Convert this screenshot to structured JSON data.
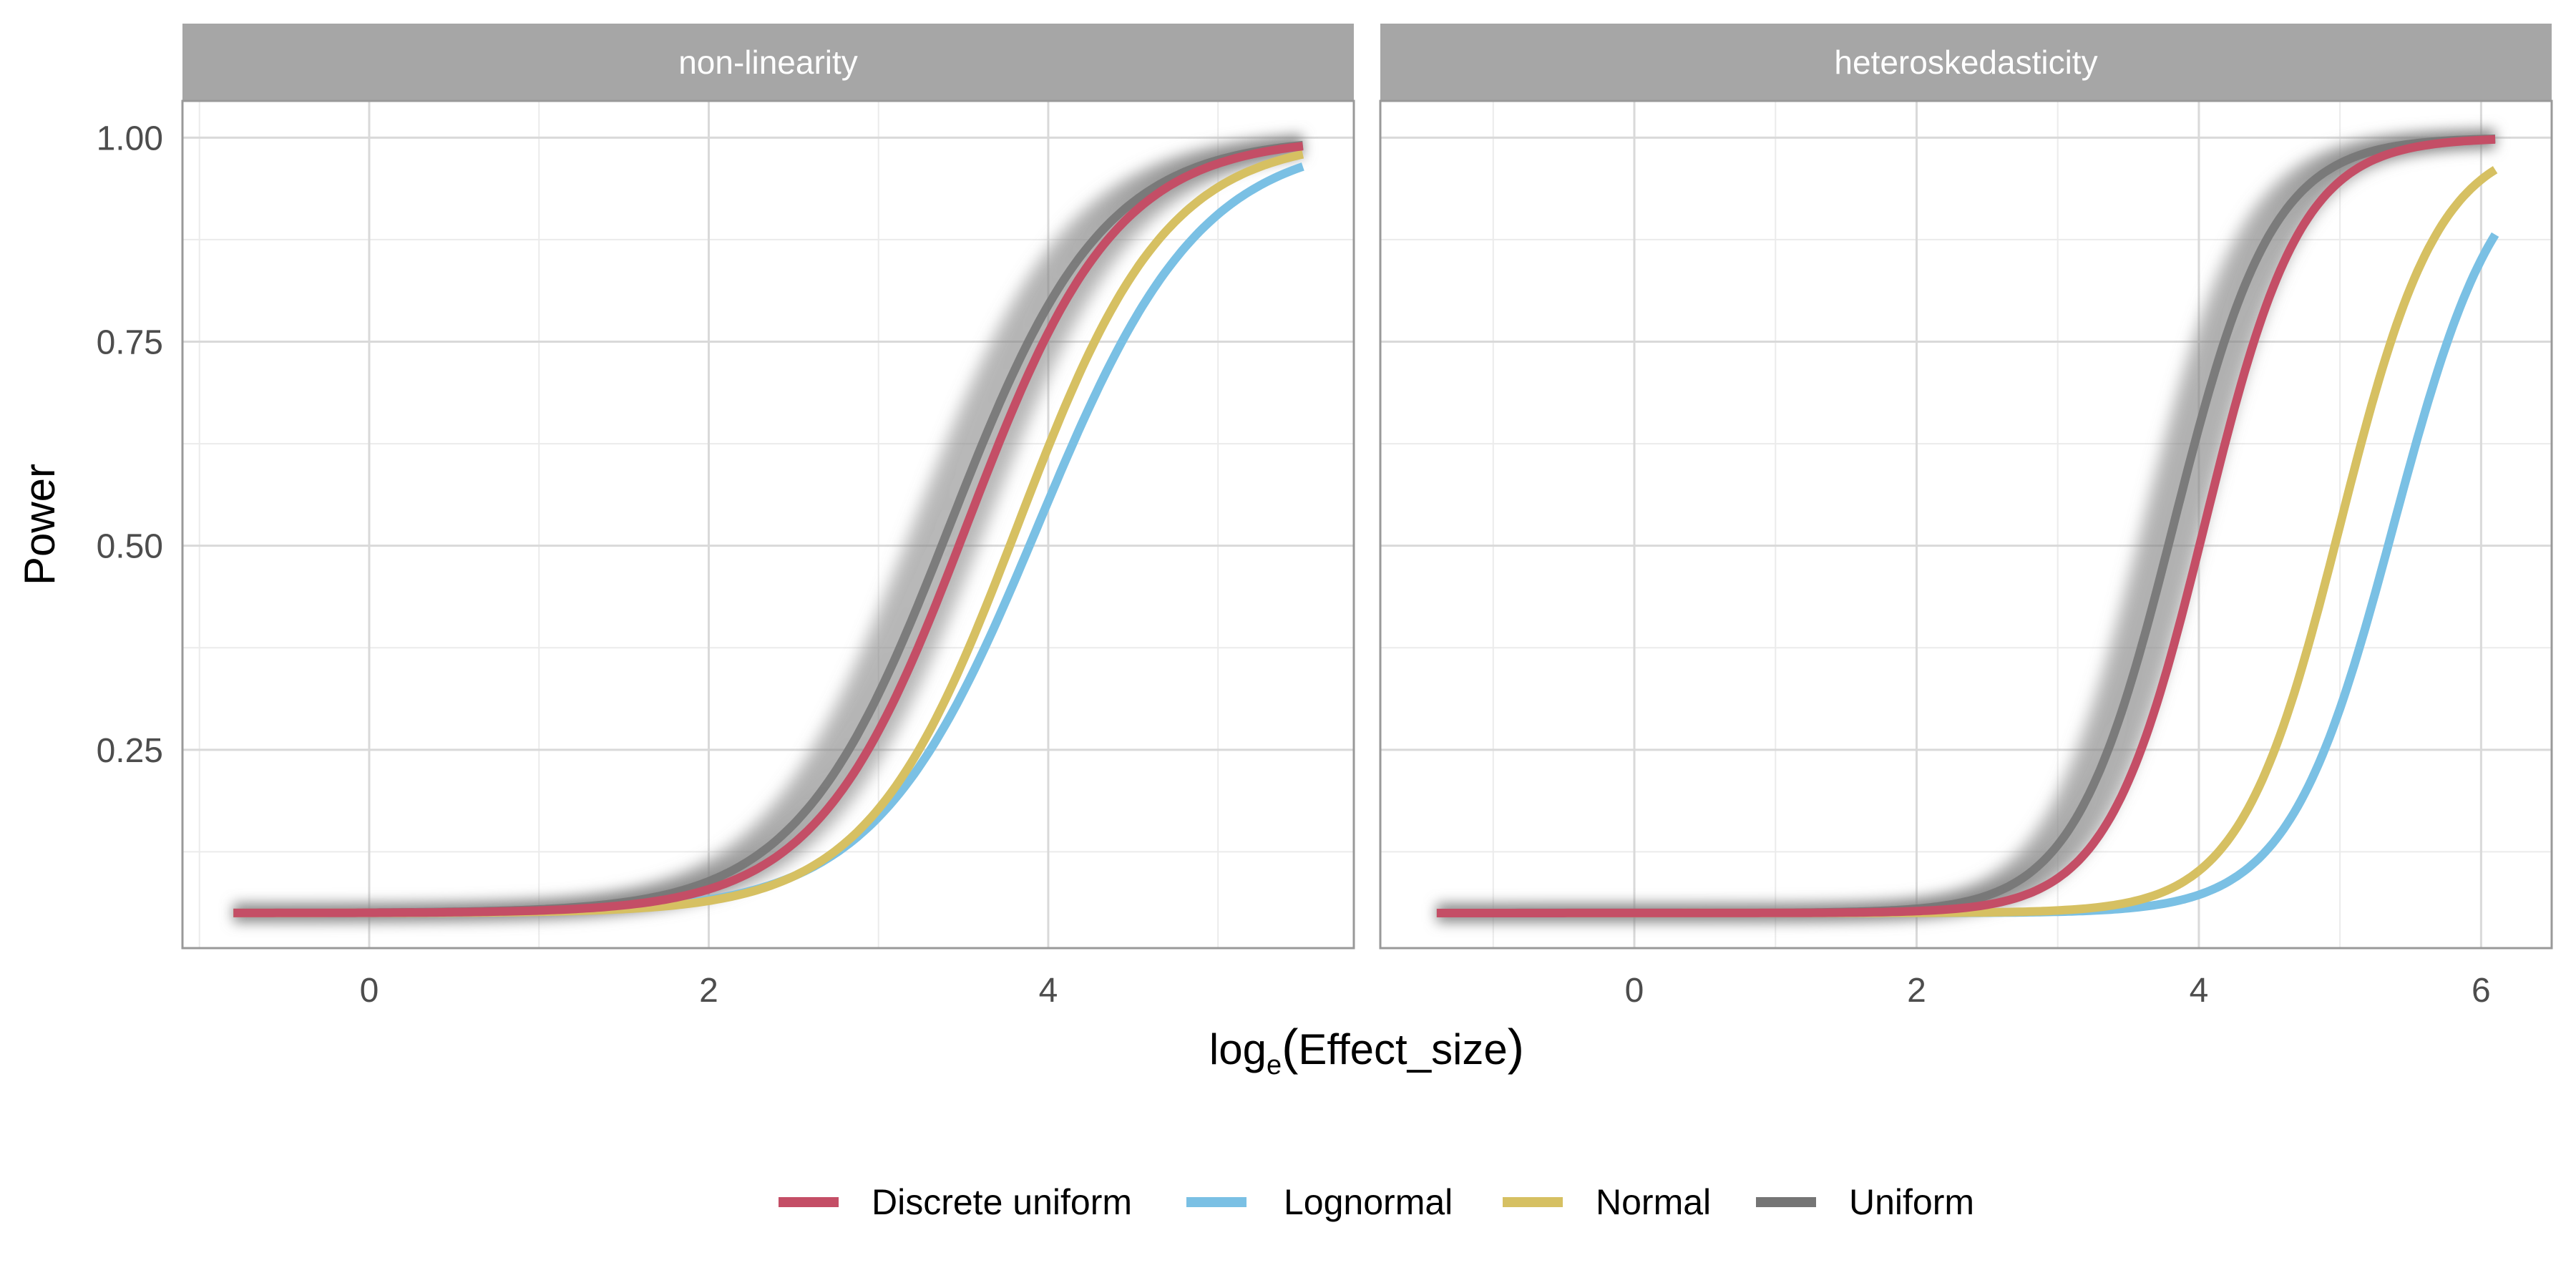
{
  "chart_data": {
    "type": "line",
    "ylabel": "Power",
    "xlabel": {
      "prefix": "log",
      "subscript": "e",
      "inner": "Effect_size"
    },
    "yticks": [
      0.25,
      0.5,
      0.75,
      1.0
    ],
    "ytick_labels": [
      "0.25",
      "0.50",
      "0.75",
      "1.00"
    ],
    "ylim": [
      0.007,
      1.045
    ],
    "grid": true,
    "legend_position": "bottom",
    "legend": [
      {
        "name": "Discrete uniform",
        "color": "#c44e66"
      },
      {
        "name": "Lognormal",
        "color": "#7ac0e4"
      },
      {
        "name": "Normal",
        "color": "#d6c062"
      },
      {
        "name": "Uniform",
        "color": "#757575"
      }
    ],
    "panels": [
      {
        "strip": "non-linearity",
        "xlim": [
          -1.1,
          5.8
        ],
        "xticks": [
          0,
          2,
          4
        ],
        "xtick_labels": [
          "0",
          "2",
          "4"
        ],
        "series": [
          {
            "name": "Uniform",
            "color": "#757575",
            "band": true,
            "x0": 3.42,
            "s": 0.45,
            "xmin": -0.8,
            "xmax": 5.5
          },
          {
            "name": "Lognormal",
            "color": "#7ac0e4",
            "x0": 3.94,
            "s": 0.48,
            "xmin": -0.8,
            "xmax": 5.5
          },
          {
            "name": "Normal",
            "color": "#d6c062",
            "x0": 3.82,
            "s": 0.44,
            "xmin": -0.8,
            "xmax": 5.5
          },
          {
            "name": "Discrete uniform",
            "color": "#c44e66",
            "x0": 3.52,
            "s": 0.44,
            "xmin": -0.8,
            "xmax": 5.5
          }
        ]
      },
      {
        "strip": "heteroskedasticity",
        "xlim": [
          -1.8,
          6.5
        ],
        "xticks": [
          0,
          2,
          4,
          6
        ],
        "xtick_labels": [
          "0",
          "2",
          "4",
          "6"
        ],
        "series": [
          {
            "name": "Uniform",
            "color": "#757575",
            "band": true,
            "x0": 3.82,
            "s": 0.35,
            "xmin": -1.4,
            "xmax": 6.1
          },
          {
            "name": "Lognormal",
            "color": "#7ac0e4",
            "x0": 5.38,
            "s": 0.37,
            "xmin": -1.4,
            "xmax": 6.1
          },
          {
            "name": "Normal",
            "color": "#d6c062",
            "x0": 5.0,
            "s": 0.35,
            "xmin": -1.4,
            "xmax": 6.1
          },
          {
            "name": "Discrete uniform",
            "color": "#c44e66",
            "x0": 4.04,
            "s": 0.34,
            "xmin": -1.4,
            "xmax": 6.1
          }
        ]
      }
    ]
  },
  "colors": {
    "strip_background": "#a6a6a6",
    "panel_border": "#999999",
    "grid_major": "#d9d9d9",
    "grid_minor": "#ebebeb",
    "band": "#808080"
  }
}
